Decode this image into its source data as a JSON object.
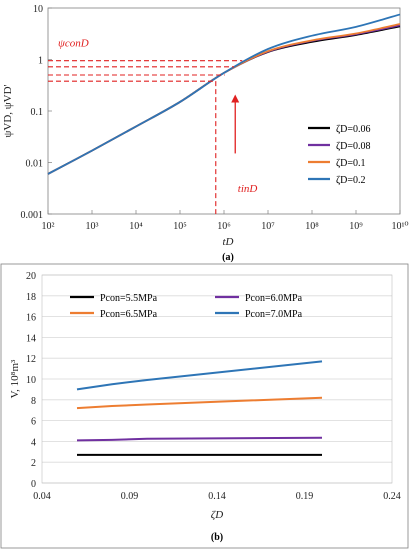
{
  "colors": {
    "s006": "#000000",
    "s008": "#7030a0",
    "s01": "#ed7d31",
    "s02": "#2e75b6",
    "annotation": "#e02020",
    "grid": "#d9d9d9"
  },
  "chart_data": [
    {
      "type": "line",
      "panel_label": "(a)",
      "xlabel": "tD",
      "ylabel": "ψVD, ψVD'",
      "xscale": "log",
      "yscale": "log",
      "xlim": [
        100,
        10000000000
      ],
      "ylim": [
        0.001,
        10
      ],
      "x_tick_labels": [
        "10²",
        "10³",
        "10⁴",
        "10⁵",
        "10⁶",
        "10⁷",
        "10⁸",
        "10⁹",
        "10¹⁰"
      ],
      "x_tick_values": [
        100,
        1000,
        10000,
        100000,
        1000000,
        10000000,
        100000000,
        1000000000,
        10000000000
      ],
      "y_tick_labels": [
        "0.001",
        "0.01",
        "0.1",
        "1",
        "10"
      ],
      "y_tick_values": [
        0.001,
        0.01,
        0.1,
        1,
        10
      ],
      "grid": false,
      "legend_position": "bottom-right",
      "annotations": {
        "psi_label": "ψconD",
        "t_label": "tinD",
        "dashed_y_values": [
          0.38,
          0.5,
          0.72,
          0.95
        ],
        "dashed_x_value": 650000,
        "arrow_x": 1800000,
        "arrow_y_from": 0.015,
        "arrow_y_to": 0.2
      },
      "series": [
        {
          "name": "ζD=0.06",
          "color_key": "s006",
          "x": [
            100,
            1000,
            10000,
            100000,
            1000000,
            10000000,
            100000000,
            1000000000,
            10000000000
          ],
          "y": [
            0.006,
            0.017,
            0.05,
            0.15,
            0.55,
            1.4,
            2.2,
            3.0,
            4.4
          ]
        },
        {
          "name": "ζD=0.08",
          "color_key": "s008",
          "x": [
            100,
            1000,
            10000,
            100000,
            1000000,
            10000000,
            100000000,
            1000000000,
            10000000000
          ],
          "y": [
            0.006,
            0.017,
            0.05,
            0.15,
            0.55,
            1.42,
            2.3,
            3.1,
            4.6
          ]
        },
        {
          "name": "ζD=0.1",
          "color_key": "s01",
          "x": [
            100,
            1000,
            10000,
            100000,
            1000000,
            10000000,
            100000000,
            1000000000,
            10000000000
          ],
          "y": [
            0.006,
            0.017,
            0.05,
            0.15,
            0.55,
            1.45,
            2.35,
            3.2,
            4.9
          ]
        },
        {
          "name": "ζD=0.2",
          "color_key": "s02",
          "x": [
            100,
            1000,
            10000,
            100000,
            1000000,
            10000000,
            100000000,
            1000000000,
            10000000000
          ],
          "y": [
            0.006,
            0.017,
            0.05,
            0.15,
            0.55,
            1.6,
            2.9,
            4.3,
            7.5
          ]
        }
      ]
    },
    {
      "type": "line",
      "panel_label": "(b)",
      "xlabel": "ζD",
      "ylabel": "V, 10⁸m³",
      "xlim": [
        0.04,
        0.24
      ],
      "ylim": [
        0,
        20
      ],
      "x_tick_labels": [
        "0.04",
        "0.09",
        "0.14",
        "0.19",
        "0.24"
      ],
      "x_tick_values": [
        0.04,
        0.09,
        0.14,
        0.19,
        0.24
      ],
      "y_tick_labels": [
        "0",
        "2",
        "4",
        "6",
        "8",
        "10",
        "12",
        "14",
        "16",
        "18",
        "20"
      ],
      "y_tick_values": [
        0,
        2,
        4,
        6,
        8,
        10,
        12,
        14,
        16,
        18,
        20
      ],
      "grid": true,
      "legend_position": "top",
      "series": [
        {
          "name": "Pcon=5.5MPa",
          "color_key": "s006",
          "x": [
            0.06,
            0.08,
            0.1,
            0.2
          ],
          "y": [
            2.7,
            2.7,
            2.7,
            2.7
          ]
        },
        {
          "name": "Pcon=6.0MPa",
          "color_key": "s008",
          "x": [
            0.06,
            0.08,
            0.1,
            0.2
          ],
          "y": [
            4.1,
            4.15,
            4.25,
            4.35
          ]
        },
        {
          "name": "Pcon=6.5MPa",
          "color_key": "s01",
          "x": [
            0.06,
            0.08,
            0.1,
            0.2
          ],
          "y": [
            7.2,
            7.4,
            7.55,
            8.2
          ]
        },
        {
          "name": "Pcon=7.0MPa",
          "color_key": "s02",
          "x": [
            0.06,
            0.08,
            0.1,
            0.2
          ],
          "y": [
            9.0,
            9.5,
            9.9,
            11.7
          ]
        }
      ]
    }
  ]
}
